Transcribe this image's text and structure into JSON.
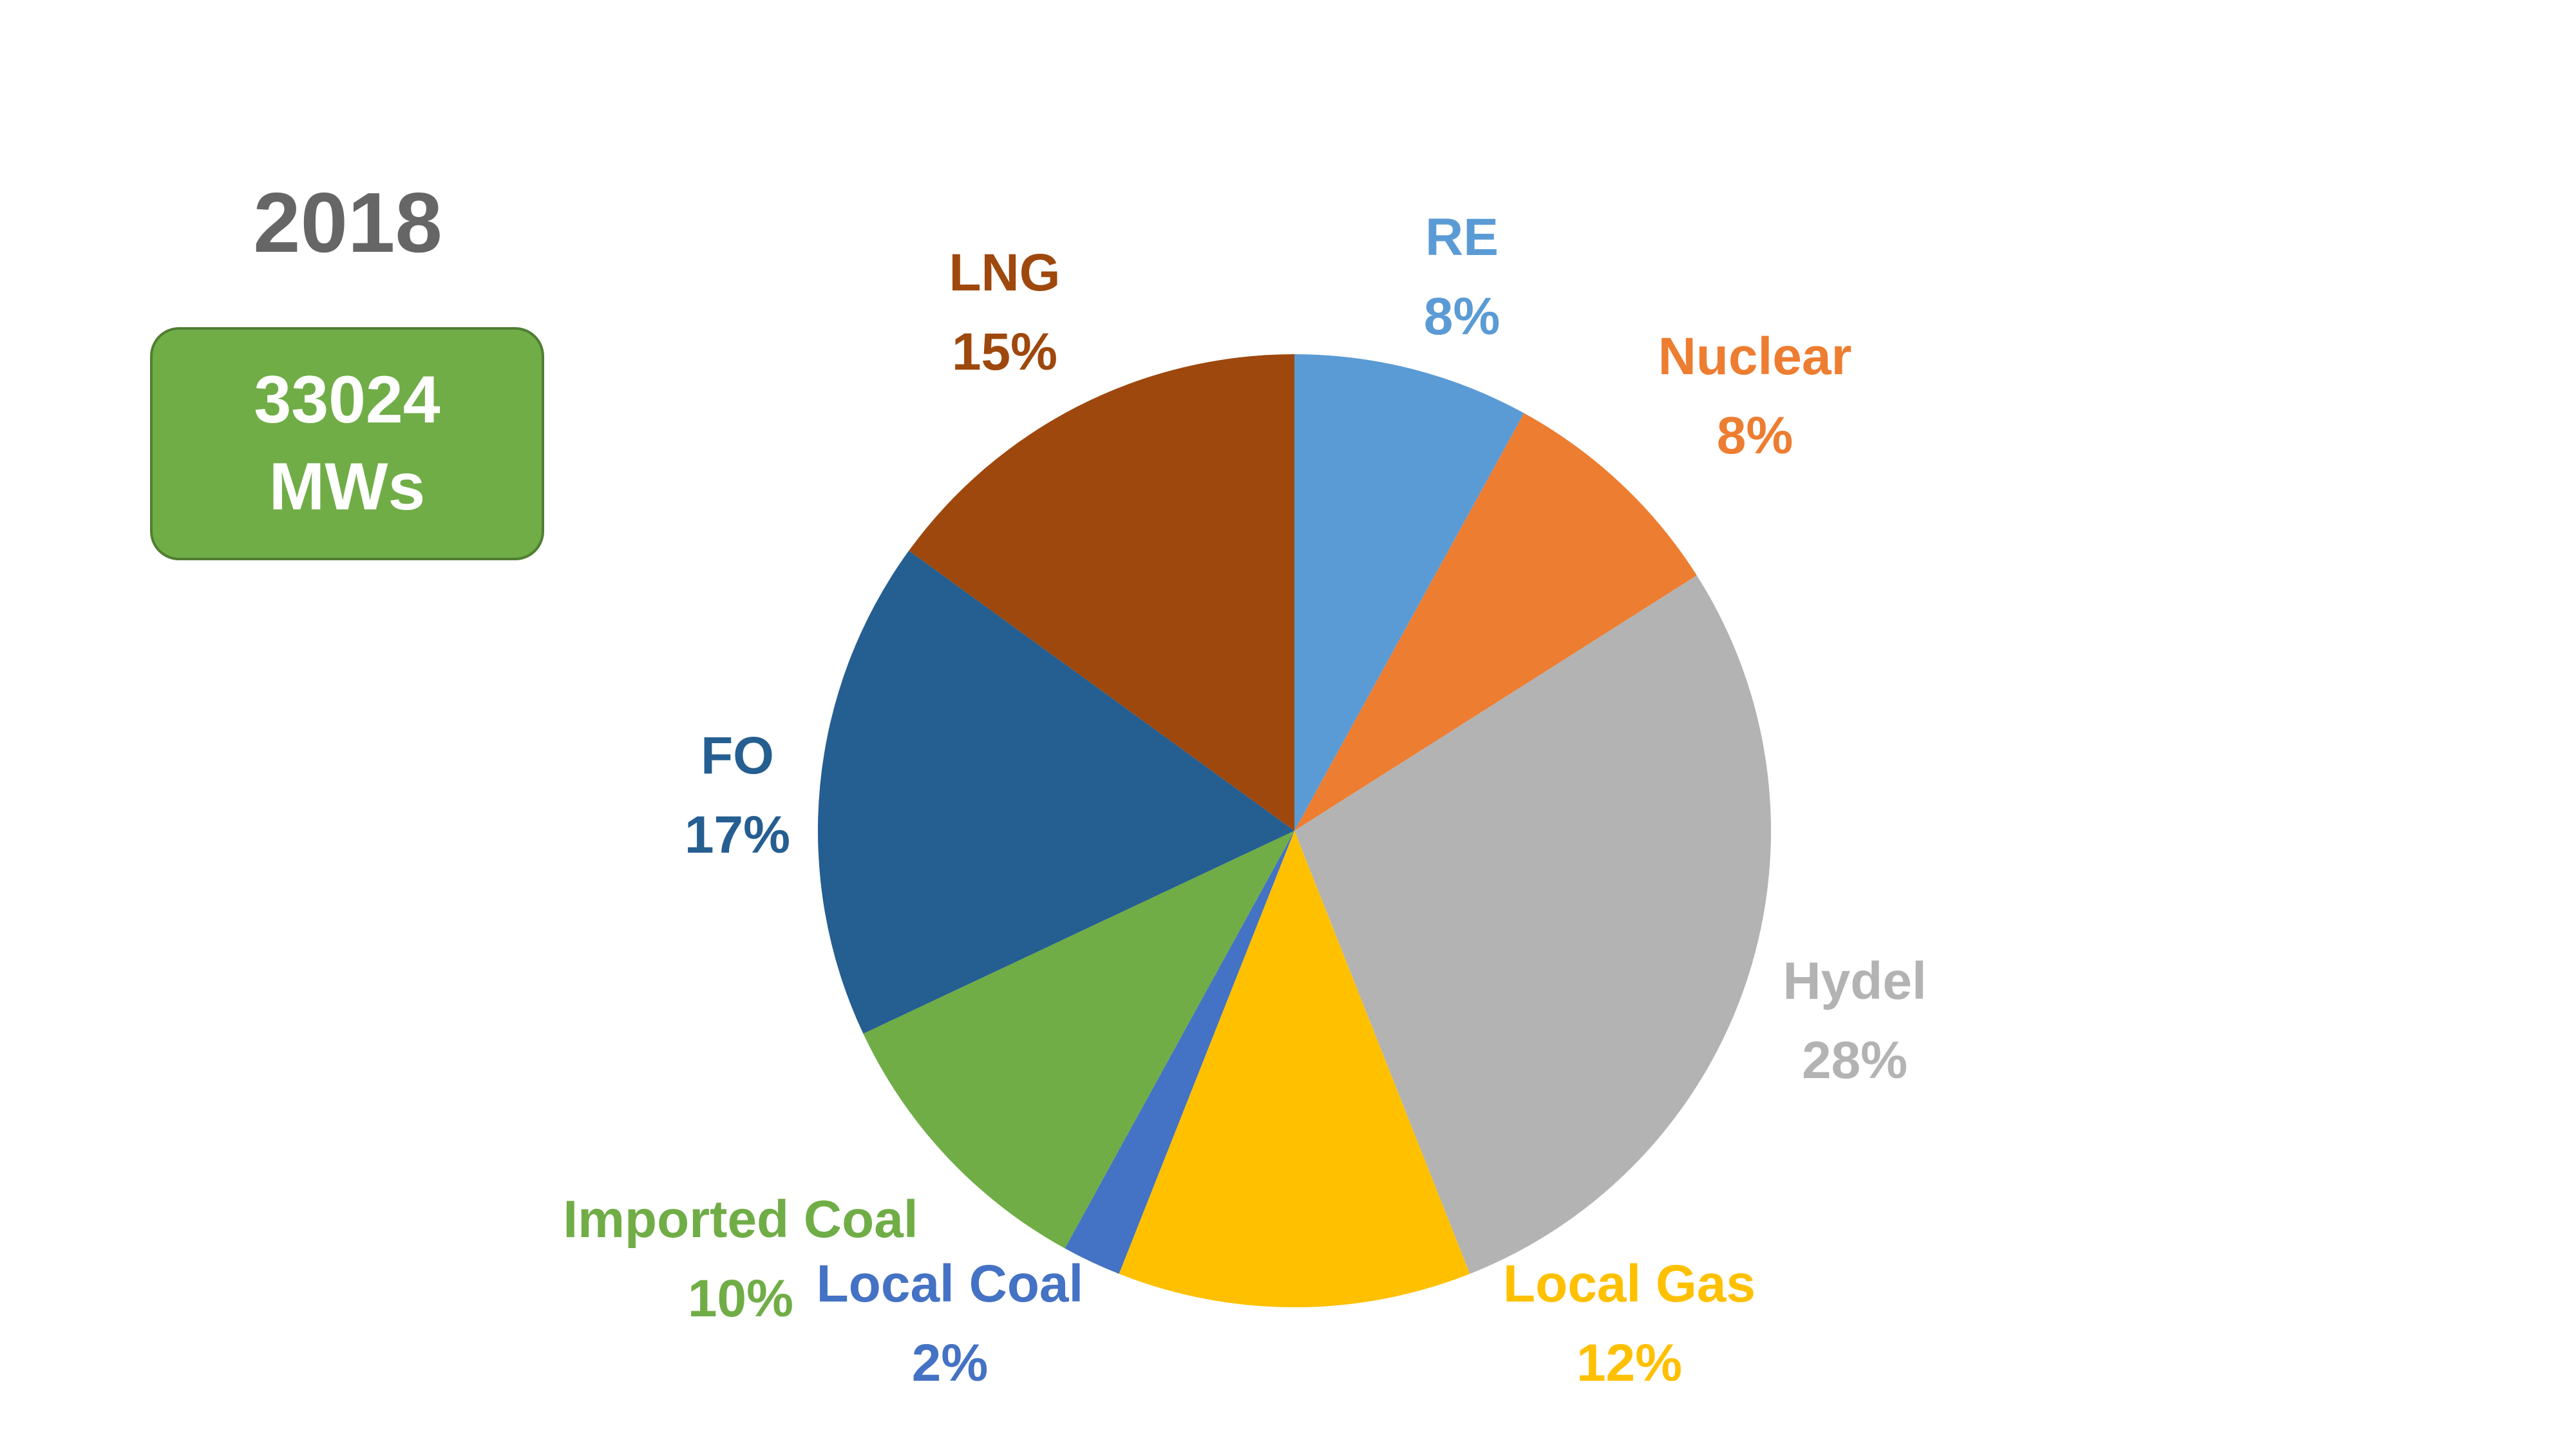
{
  "header": {
    "year": "2018"
  },
  "total": {
    "line1": "33024",
    "line2": "MWs",
    "color": "#70ad47"
  },
  "chart_data": {
    "type": "pie",
    "start_angle_deg": 0,
    "direction": "clockwise",
    "slices": [
      {
        "name": "RE",
        "value": 8,
        "label": "8%",
        "color": "#5b9bd5"
      },
      {
        "name": "Nuclear",
        "value": 8,
        "label": "8%",
        "color": "#ed7d31"
      },
      {
        "name": "Hydel",
        "value": 28,
        "label": "28%",
        "color": "#b3b3b3"
      },
      {
        "name": "Local Gas",
        "value": 12,
        "label": "12%",
        "color": "#ffc000"
      },
      {
        "name": "Local Coal",
        "value": 2,
        "label": "2%",
        "color": "#4472c4"
      },
      {
        "name": "Imported Coal",
        "value": 10,
        "label": "10%",
        "color": "#70ad47"
      },
      {
        "name": "FO",
        "value": 17,
        "label": "17%",
        "color": "#255e91"
      },
      {
        "name": "LNG",
        "value": 15,
        "label": "15%",
        "color": "#9e480e"
      }
    ]
  }
}
